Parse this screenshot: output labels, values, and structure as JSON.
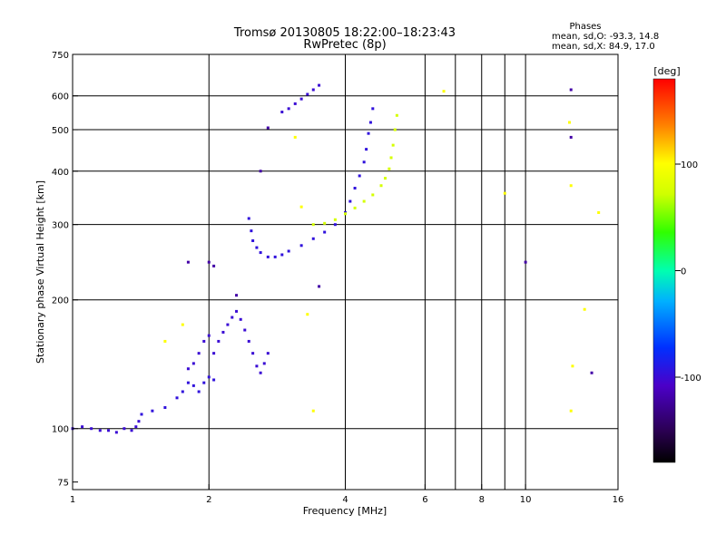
{
  "chart_data": {
    "type": "scatter",
    "title": "Tromsø 20130805 18:22:00–18:23:43",
    "subtitle": "RwPretec (8p)",
    "xlabel": "Frequency [MHz]",
    "ylabel": "Stationary phase Virtual Height [km]",
    "x_scale": "log",
    "y_scale": "log",
    "xlim": [
      1,
      16
    ],
    "ylim": [
      72,
      750
    ],
    "x_ticks": [
      1,
      2,
      4,
      6,
      8,
      10,
      16
    ],
    "x_tick_labels": [
      "1",
      "2",
      "4",
      "6",
      "8",
      "10",
      "16"
    ],
    "x_gridlines": [
      2,
      4,
      6,
      7,
      8,
      9,
      10
    ],
    "y_ticks": [
      75,
      100,
      200,
      300,
      400,
      500,
      600,
      750
    ],
    "y_tick_labels": [
      "75",
      "100",
      "200",
      "300",
      "400",
      "500",
      "600",
      "750"
    ],
    "y_gridlines": [
      100,
      200,
      300,
      400,
      500,
      600
    ],
    "grid": true,
    "legend": {
      "title": "Phases",
      "lines": [
        "mean, sd,O: -93.3, 14.8",
        "mean, sd,X:  84.9, 17.0"
      ]
    },
    "colorbar": {
      "label": "[deg]",
      "min": -180,
      "max": 180,
      "ticks": [
        -100,
        0,
        100
      ],
      "tick_labels": [
        "-100",
        "0",
        "100"
      ]
    },
    "traces": [
      {
        "name": "O-lower-E",
        "phase": -100,
        "points": [
          [
            1.0,
            100
          ],
          [
            1.05,
            101
          ],
          [
            1.1,
            100
          ],
          [
            1.15,
            99
          ],
          [
            1.2,
            99
          ],
          [
            1.25,
            98
          ],
          [
            1.3,
            100
          ],
          [
            1.35,
            99
          ],
          [
            1.38,
            101
          ],
          [
            1.4,
            104
          ]
        ]
      },
      {
        "name": "O-es",
        "phase": -95,
        "points": [
          [
            1.42,
            108
          ],
          [
            1.5,
            110
          ],
          [
            1.6,
            112
          ],
          [
            1.7,
            118
          ],
          [
            1.75,
            122
          ],
          [
            1.8,
            128
          ],
          [
            1.85,
            126
          ],
          [
            1.9,
            122
          ],
          [
            1.95,
            128
          ],
          [
            2.0,
            132
          ],
          [
            2.05,
            130
          ]
        ]
      },
      {
        "name": "O-es-upper",
        "phase": -100,
        "points": [
          [
            1.8,
            138
          ],
          [
            1.85,
            142
          ],
          [
            1.9,
            150
          ],
          [
            1.95,
            160
          ],
          [
            2.0,
            165
          ],
          [
            2.05,
            150
          ],
          [
            2.1,
            160
          ],
          [
            2.15,
            168
          ],
          [
            2.2,
            175
          ],
          [
            2.25,
            182
          ],
          [
            2.3,
            188
          ],
          [
            2.35,
            180
          ],
          [
            2.4,
            170
          ],
          [
            2.45,
            160
          ],
          [
            2.5,
            150
          ],
          [
            2.55,
            140
          ],
          [
            2.6,
            135
          ],
          [
            2.65,
            142
          ],
          [
            2.7,
            150
          ]
        ]
      },
      {
        "name": "O-F1",
        "phase": -95,
        "points": [
          [
            2.45,
            310
          ],
          [
            2.48,
            290
          ],
          [
            2.5,
            275
          ],
          [
            2.55,
            265
          ],
          [
            2.6,
            258
          ],
          [
            2.7,
            252
          ],
          [
            2.8,
            252
          ],
          [
            2.9,
            255
          ],
          [
            3.0,
            260
          ],
          [
            3.2,
            268
          ],
          [
            3.4,
            278
          ],
          [
            3.6,
            288
          ],
          [
            3.8,
            300
          ],
          [
            4.0,
            320
          ],
          [
            4.1,
            340
          ],
          [
            4.2,
            365
          ],
          [
            4.3,
            390
          ],
          [
            4.4,
            420
          ],
          [
            4.45,
            450
          ],
          [
            4.5,
            490
          ],
          [
            4.55,
            520
          ],
          [
            4.6,
            560
          ]
        ]
      },
      {
        "name": "O-F2-upper",
        "phase": -100,
        "points": [
          [
            2.9,
            550
          ],
          [
            3.0,
            560
          ],
          [
            3.1,
            575
          ],
          [
            3.2,
            590
          ],
          [
            3.3,
            605
          ],
          [
            3.4,
            620
          ],
          [
            3.5,
            635
          ]
        ]
      },
      {
        "name": "X-F",
        "phase": 75,
        "points": [
          [
            3.4,
            300
          ],
          [
            3.6,
            302
          ],
          [
            3.8,
            308
          ],
          [
            4.0,
            318
          ],
          [
            4.2,
            328
          ],
          [
            4.4,
            340
          ],
          [
            4.6,
            352
          ],
          [
            4.8,
            370
          ],
          [
            4.9,
            385
          ],
          [
            5.0,
            405
          ],
          [
            5.05,
            430
          ],
          [
            5.1,
            460
          ],
          [
            5.15,
            500
          ],
          [
            5.2,
            540
          ]
        ]
      },
      {
        "name": "scatter-warm",
        "phase": 100,
        "points": [
          [
            1.6,
            160
          ],
          [
            1.75,
            175
          ],
          [
            3.1,
            480
          ],
          [
            3.2,
            330
          ],
          [
            3.3,
            185
          ],
          [
            3.4,
            110
          ],
          [
            6.6,
            615
          ],
          [
            9.0,
            355
          ],
          [
            12.5,
            520
          ],
          [
            12.6,
            370
          ],
          [
            12.7,
            140
          ],
          [
            12.6,
            110
          ],
          [
            13.5,
            190
          ],
          [
            14.5,
            320
          ]
        ]
      },
      {
        "name": "scatter-cool",
        "phase": -120,
        "points": [
          [
            1.8,
            245
          ],
          [
            2.0,
            245
          ],
          [
            2.05,
            240
          ],
          [
            2.3,
            205
          ],
          [
            2.6,
            400
          ],
          [
            2.7,
            505
          ],
          [
            3.5,
            215
          ],
          [
            10.0,
            245
          ],
          [
            12.6,
            620
          ],
          [
            12.6,
            480
          ],
          [
            14.0,
            135
          ]
        ]
      }
    ]
  }
}
